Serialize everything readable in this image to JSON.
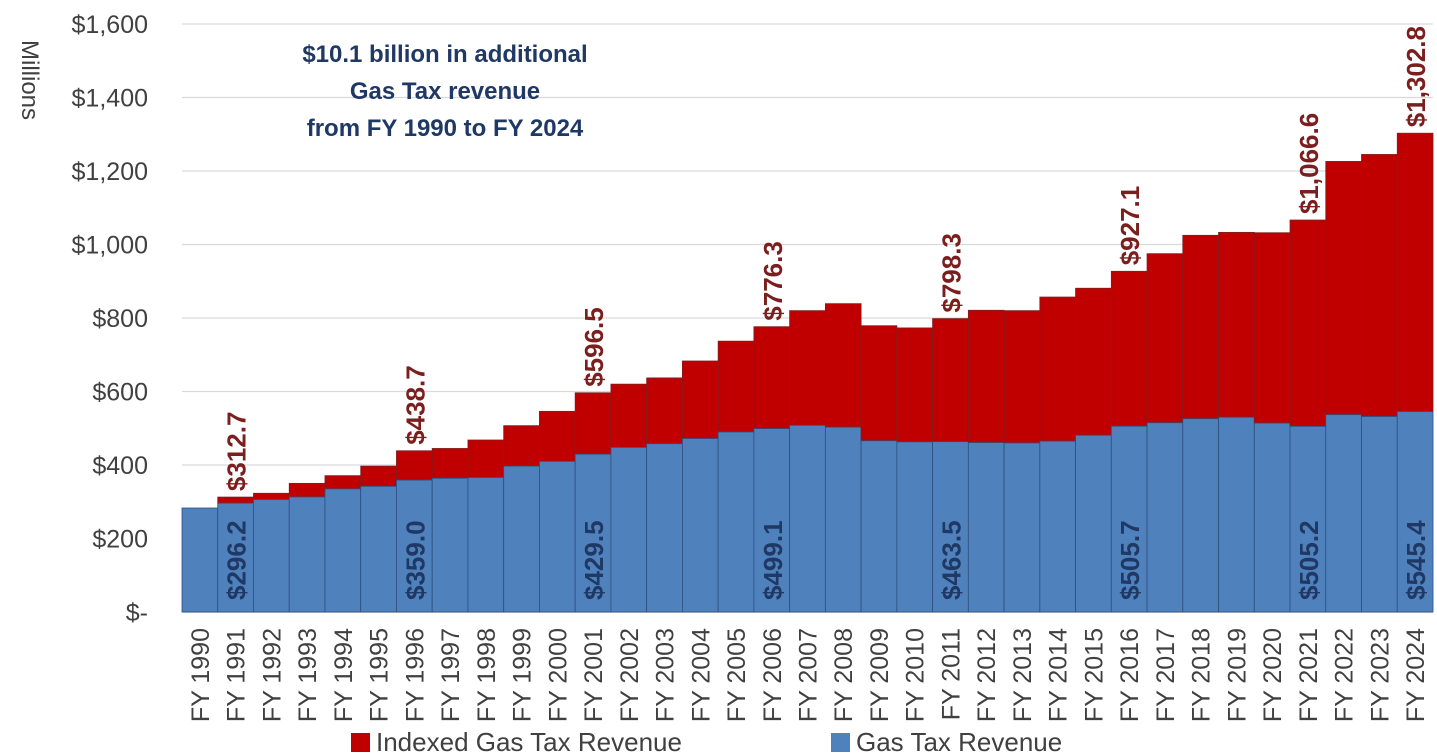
{
  "chart_data": {
    "type": "bar",
    "stacked": true,
    "ylabel": "Millions",
    "ylim": [
      0,
      1600
    ],
    "yticks": [
      0,
      200,
      400,
      600,
      800,
      1000,
      1200,
      1400,
      1600
    ],
    "ytick_labels": [
      "$-",
      "$200",
      "$400",
      "$600",
      "$800",
      "$1,000",
      "$1,200",
      "$1,400",
      "$1,600"
    ],
    "grid": true,
    "legend": "bottom",
    "callout": [
      "$10.1 billion in additional",
      "Gas Tax revenue",
      "from FY 1990 to FY 2024"
    ],
    "categories": [
      "FY 1990",
      "FY 1991",
      "FY 1992",
      "FY 1993",
      "FY 1994",
      "FY 1995",
      "FY 1996",
      "FY 1997",
      "FY 1998",
      "FY 1999",
      "FY 2000",
      "FY 2001",
      "FY 2002",
      "FY 2003",
      "FY 2004",
      "FY 2005",
      "FY 2006",
      "FY 2007",
      "FY 2008",
      "FY 2009",
      "FY 2010",
      "FY 2011",
      "FY 2012",
      "FY 2013",
      "FY 2014",
      "FY 2015",
      "FY 2016",
      "FY 2017",
      "FY 2018",
      "FY 2019",
      "FY 2020",
      "FY 2021",
      "FY 2022",
      "FY 2023",
      "FY 2024"
    ],
    "series": [
      {
        "name": "Gas Tax Revenue",
        "color": "#4f81bd",
        "values": [
          283,
          296.2,
          306,
          313,
          335,
          342,
          359.0,
          364,
          366,
          397,
          410,
          429.5,
          448,
          458,
          472,
          490,
          499.1,
          508,
          503,
          466,
          463,
          463.5,
          461,
          460,
          465,
          481,
          505.7,
          515,
          526,
          530,
          514,
          505.2,
          537,
          532,
          545.4
        ]
      },
      {
        "name": "Indexed Gas Tax Revenue",
        "color": "#c00000",
        "total_values": [
          283,
          312.7,
          323,
          350,
          371,
          397,
          438.7,
          445,
          468,
          507,
          546,
          596.5,
          620,
          637,
          683,
          737,
          776.3,
          820,
          839,
          779,
          773,
          798.3,
          821,
          820,
          857,
          881,
          927.1,
          975,
          1025,
          1033,
          1032,
          1066.6,
          1226,
          1245,
          1302.8
        ]
      }
    ],
    "data_labels": {
      "gas_tax": [
        {
          "category": "FY 1991",
          "text": "$296.2"
        },
        {
          "category": "FY 1996",
          "text": "$359.0"
        },
        {
          "category": "FY 2001",
          "text": "$429.5"
        },
        {
          "category": "FY 2006",
          "text": "$499.1"
        },
        {
          "category": "FY 2011",
          "text": "$463.5"
        },
        {
          "category": "FY 2016",
          "text": "$505.7"
        },
        {
          "category": "FY 2021",
          "text": "$505.2"
        },
        {
          "category": "FY 2024",
          "text": "$545.4"
        }
      ],
      "total": [
        {
          "category": "FY 1991",
          "text": "$312.7"
        },
        {
          "category": "FY 1996",
          "text": "$438.7"
        },
        {
          "category": "FY 2001",
          "text": "$596.5"
        },
        {
          "category": "FY 2006",
          "text": "$776.3"
        },
        {
          "category": "FY 2011",
          "text": "$798.3"
        },
        {
          "category": "FY 2016",
          "text": "$927.1"
        },
        {
          "category": "FY 2021",
          "text": "$1,066.6"
        },
        {
          "category": "FY 2024",
          "text": "$1,302.8"
        }
      ]
    }
  }
}
